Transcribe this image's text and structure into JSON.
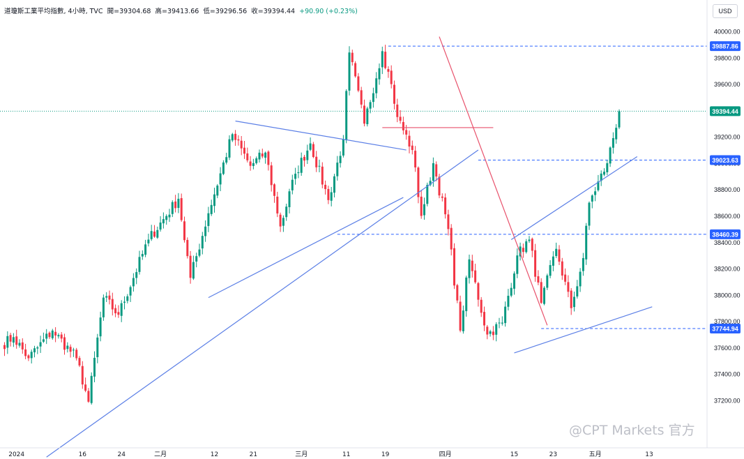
{
  "header": {
    "title": "道瓊斯工業平均指數, 4小時, TVC",
    "open_label": "開",
    "open": "39304.68",
    "high_label": "高",
    "high": "39413.66",
    "low_label": "低",
    "low": "39296.56",
    "close_label": "收",
    "close": "39394.44",
    "change": "+90.90 (+0.23%)"
  },
  "currency_button": "USD",
  "watermark": "@CPT Markets 官方",
  "chart_data": {
    "type": "candlestick",
    "title": "道瓊斯工業平均指數, 4小時, TVC",
    "ylim": [
      37000,
      40100
    ],
    "y_ticks": [
      37200,
      37400,
      37600,
      37800,
      38000,
      38200,
      38400,
      38600,
      38800,
      39000,
      39200,
      39400,
      39600,
      39800,
      40000
    ],
    "y_tick_labels": [
      "37200.00",
      "37400.00",
      "37600.00",
      "37800.00",
      "38000.00",
      "38200.00",
      "38400.00",
      "38600.00",
      "38800.00",
      "39000.00",
      "39200.00",
      "39400.00",
      "39600.00",
      "39800.00",
      "40000.00"
    ],
    "x_labels": [
      {
        "label": "2024",
        "bar": 4
      },
      {
        "label": "16",
        "bar": 26
      },
      {
        "label": "24",
        "bar": 39
      },
      {
        "label": "二月",
        "bar": 52
      },
      {
        "label": "12",
        "bar": 70
      },
      {
        "label": "21",
        "bar": 83
      },
      {
        "label": "三月",
        "bar": 99
      },
      {
        "label": "11",
        "bar": 114
      },
      {
        "label": "19",
        "bar": 127
      },
      {
        "label": "四月",
        "bar": 147
      },
      {
        "label": "15",
        "bar": 170
      },
      {
        "label": "23",
        "bar": 183
      },
      {
        "label": "五月",
        "bar": 197
      },
      {
        "label": "13",
        "bar": 215
      }
    ],
    "price_markers": [
      {
        "value": 39887.86,
        "label": "39887.86",
        "color": "#2962ff",
        "line": "dashed"
      },
      {
        "value": 39394.44,
        "label": "39394.44",
        "color": "#089981",
        "line": "dotted"
      },
      {
        "value": 39023.63,
        "label": "39023.63",
        "color": "#2962ff",
        "line": "dashed"
      },
      {
        "value": 38460.39,
        "label": "38460.39",
        "color": "#2962ff",
        "line": "dashed"
      },
      {
        "value": 37744.94,
        "label": "37744.94",
        "color": "#2962ff",
        "line": "dashed"
      }
    ],
    "trendlines": [
      {
        "color": "#5b7fe6",
        "points": [
          [
            14,
            36770
          ],
          [
            158,
            39100
          ]
        ]
      },
      {
        "color": "#5b7fe6",
        "points": [
          [
            68,
            37980
          ],
          [
            133,
            38740
          ]
        ]
      },
      {
        "color": "#5b7fe6",
        "points": [
          [
            77,
            39320
          ],
          [
            134,
            39100
          ]
        ]
      },
      {
        "color": "#e8516b",
        "points": [
          [
            145,
            39960
          ],
          [
            181,
            37770
          ]
        ]
      },
      {
        "color": "#e8516b",
        "points": [
          [
            126,
            39270
          ],
          [
            163,
            39270
          ]
        ]
      },
      {
        "color": "#5b7fe6",
        "points": [
          [
            169,
            38420
          ],
          [
            211,
            39050
          ]
        ]
      },
      {
        "color": "#5b7fe6",
        "points": [
          [
            170,
            37560
          ],
          [
            216,
            37910
          ]
        ]
      }
    ],
    "segments": [
      {
        "start": 37620,
        "end": 37680,
        "n": 4
      },
      {
        "start": 37680,
        "end": 37520,
        "n": 5
      },
      {
        "start": 37520,
        "end": 37730,
        "n": 8
      },
      {
        "start": 37730,
        "end": 37520,
        "n": 8
      },
      {
        "start": 37520,
        "end": 37190,
        "n": 4
      },
      {
        "start": 37190,
        "end": 37980,
        "n": 5
      },
      {
        "start": 37980,
        "end": 37850,
        "n": 5
      },
      {
        "start": 37850,
        "end": 38420,
        "n": 10
      },
      {
        "start": 38420,
        "end": 38730,
        "n": 10
      },
      {
        "start": 38730,
        "end": 38130,
        "n": 4
      },
      {
        "start": 38130,
        "end": 38620,
        "n": 6
      },
      {
        "start": 38620,
        "end": 39220,
        "n": 8
      },
      {
        "start": 39220,
        "end": 38980,
        "n": 6
      },
      {
        "start": 38980,
        "end": 39080,
        "n": 5
      },
      {
        "start": 39080,
        "end": 38520,
        "n": 5
      },
      {
        "start": 38520,
        "end": 38920,
        "n": 5
      },
      {
        "start": 38920,
        "end": 39150,
        "n": 5
      },
      {
        "start": 39150,
        "end": 38720,
        "n": 6
      },
      {
        "start": 38720,
        "end": 39180,
        "n": 5
      },
      {
        "start": 39180,
        "end": 39840,
        "n": 2
      },
      {
        "start": 39840,
        "end": 39300,
        "n": 5
      },
      {
        "start": 39300,
        "end": 39850,
        "n": 6
      },
      {
        "start": 39850,
        "end": 39600,
        "n": 3
      },
      {
        "start": 39600,
        "end": 39350,
        "n": 2
      },
      {
        "start": 39350,
        "end": 39100,
        "n": 5
      },
      {
        "start": 39100,
        "end": 38600,
        "n": 3
      },
      {
        "start": 38600,
        "end": 39000,
        "n": 4
      },
      {
        "start": 39000,
        "end": 38500,
        "n": 5
      },
      {
        "start": 38500,
        "end": 37730,
        "n": 4
      },
      {
        "start": 37730,
        "end": 38270,
        "n": 3
      },
      {
        "start": 38270,
        "end": 37700,
        "n": 6
      },
      {
        "start": 37700,
        "end": 37790,
        "n": 5
      },
      {
        "start": 37790,
        "end": 38300,
        "n": 5
      },
      {
        "start": 38300,
        "end": 38420,
        "n": 4
      },
      {
        "start": 38420,
        "end": 37940,
        "n": 4
      },
      {
        "start": 37940,
        "end": 38350,
        "n": 5
      },
      {
        "start": 38350,
        "end": 37900,
        "n": 5
      },
      {
        "start": 37900,
        "end": 38280,
        "n": 4
      },
      {
        "start": 38280,
        "end": 38700,
        "n": 2
      },
      {
        "start": 38700,
        "end": 39000,
        "n": 6
      },
      {
        "start": 39000,
        "end": 39394.44,
        "n": 4
      }
    ]
  }
}
